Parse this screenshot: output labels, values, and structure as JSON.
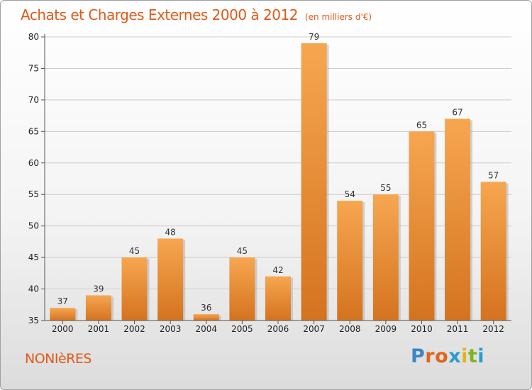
{
  "header": {
    "title": "Achats et Charges Externes 2000 à 2012",
    "subtitle": "(en milliers d'€)"
  },
  "footer": {
    "commune": "NONIèRES",
    "logo_letters": [
      "P",
      "r",
      "o",
      "x",
      "i",
      "t",
      "i"
    ]
  },
  "colors": {
    "title": "#e05a1a",
    "bar_top": "#f7a650",
    "bar_bottom": "#d4731f",
    "grid": "#cccccc"
  },
  "chart_data": {
    "type": "bar",
    "categories": [
      "2000",
      "2001",
      "2002",
      "2003",
      "2004",
      "2005",
      "2006",
      "2007",
      "2008",
      "2009",
      "2010",
      "2011",
      "2012"
    ],
    "values": [
      37,
      39,
      45,
      48,
      36,
      45,
      42,
      79,
      54,
      55,
      65,
      67,
      57
    ],
    "data_labels": [
      "37",
      "39",
      "45",
      "48",
      "36",
      "45",
      "42",
      "79",
      "54",
      "55",
      "65",
      "67",
      "57"
    ],
    "title": "Achats et Charges Externes 2000 à 2012",
    "xlabel": "",
    "ylabel": "",
    "ylim": [
      35,
      80
    ],
    "yticks": [
      35,
      40,
      45,
      50,
      55,
      60,
      65,
      70,
      75,
      80
    ],
    "grid": true,
    "legend": "none"
  }
}
